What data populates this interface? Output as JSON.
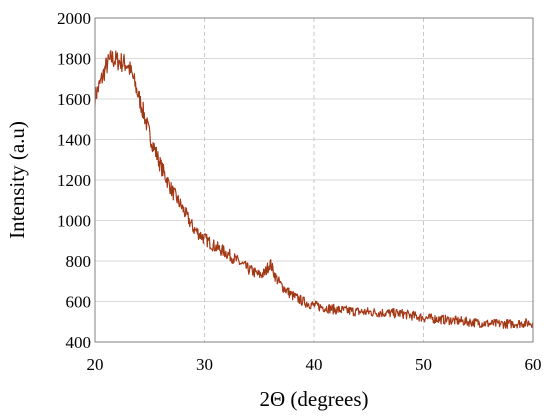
{
  "chart_data": {
    "type": "line",
    "xlabel": "2Θ (degrees)",
    "ylabel": "Intensity (a.u)",
    "xlim": [
      20,
      60
    ],
    "ylim": [
      400,
      2000
    ],
    "x_ticks": [
      "20",
      "30",
      "40",
      "50",
      "60"
    ],
    "y_ticks": [
      "400",
      "600",
      "800",
      "1000",
      "1200",
      "1400",
      "1600",
      "1800",
      "2000"
    ],
    "grid": {
      "vertical": "dashed",
      "horizontal": "solid"
    },
    "series": [
      {
        "color": "#8b4513",
        "noise_color": "#e0151b",
        "x": [
          20,
          20.5,
          21,
          21.5,
          22,
          22.5,
          23,
          23.5,
          24,
          24.5,
          25,
          26,
          27,
          28,
          29,
          30,
          31,
          32,
          33,
          34,
          35,
          35.5,
          36,
          36.5,
          37,
          38,
          39,
          40,
          42,
          44,
          46,
          48,
          50,
          52,
          54,
          56,
          58,
          60
        ],
        "y": [
          1610,
          1680,
          1760,
          1800,
          1790,
          1780,
          1770,
          1700,
          1610,
          1520,
          1420,
          1270,
          1150,
          1060,
          960,
          910,
          870,
          840,
          800,
          760,
          730,
          740,
          790,
          720,
          680,
          630,
          600,
          580,
          560,
          550,
          545,
          540,
          520,
          510,
          500,
          490,
          490,
          495
        ]
      }
    ]
  }
}
